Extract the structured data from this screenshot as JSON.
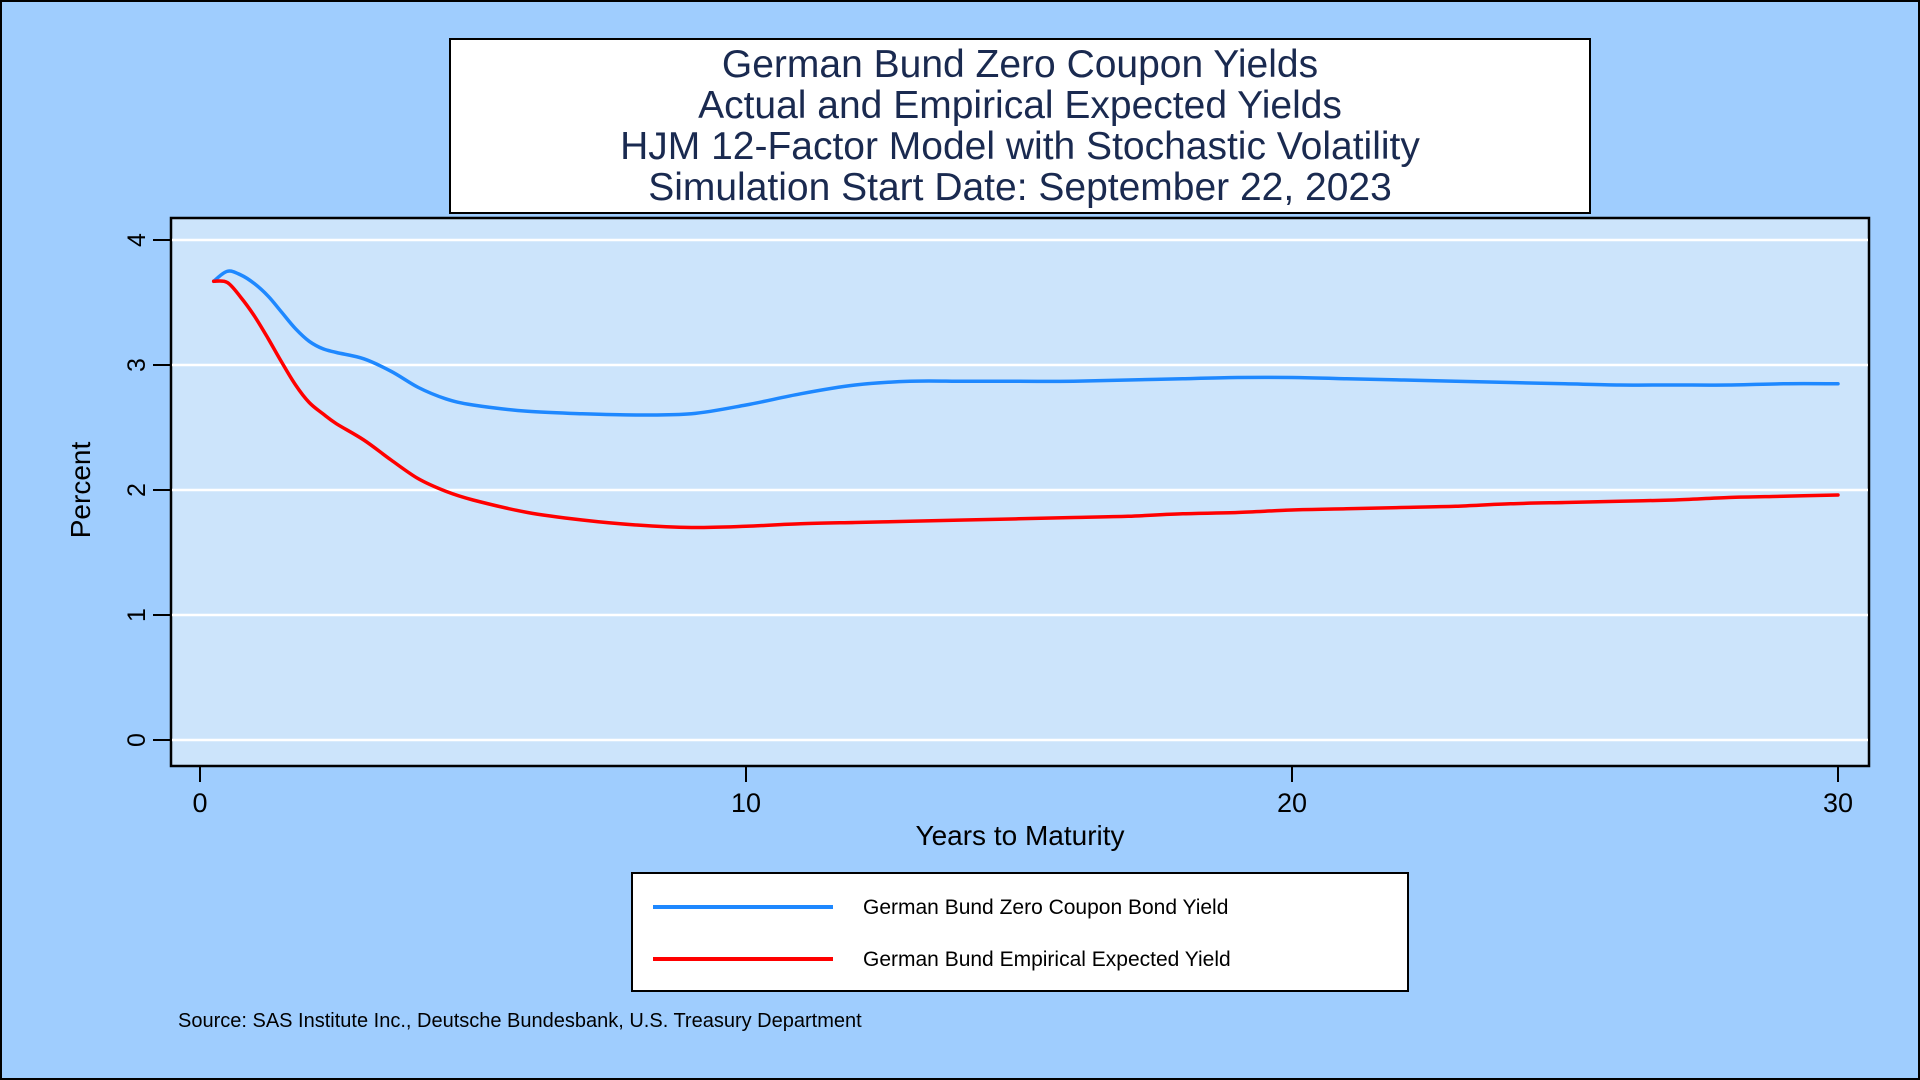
{
  "title_lines": [
    "German Bund Zero Coupon Yields",
    "Actual and Empirical Expected Yields",
    "HJM 12-Factor Model with Stochastic Volatility",
    "Simulation Start Date: September 22, 2023"
  ],
  "source": "Source: SAS Institute Inc., Deutsche Bundesbank, U.S. Treasury Department",
  "colors": {
    "page_background": "#9fcdfe",
    "plot_background": "#cce4fb",
    "gridline": "#ffffff",
    "zero_coupon_series": "#1e88ff",
    "expected_series": "#ff0000"
  },
  "chart_data": {
    "type": "line",
    "xlabel": "Years to Maturity",
    "ylabel": "Percent",
    "xlim": [
      0,
      30
    ],
    "ylim": [
      0,
      4
    ],
    "x_ticks": [
      "0",
      "10",
      "20",
      "30"
    ],
    "y_ticks": [
      "0",
      "1",
      "2",
      "3",
      "4"
    ],
    "grid": "horizontal",
    "legend_position": "bottom",
    "series": [
      {
        "name": "German Bund Zero Coupon Bond Yield",
        "color": "#1e88ff",
        "x": [
          0.25,
          0.5,
          0.75,
          1.0,
          1.25,
          1.5,
          1.75,
          2.0,
          2.25,
          2.5,
          3.0,
          3.5,
          4.0,
          4.5,
          5,
          6,
          7,
          8,
          9,
          10,
          11,
          12,
          13,
          14,
          15,
          16,
          17,
          18,
          19,
          20,
          21,
          22,
          23,
          24,
          25,
          26,
          27,
          28,
          29,
          30
        ],
        "y": [
          3.67,
          3.75,
          3.72,
          3.65,
          3.55,
          3.42,
          3.29,
          3.19,
          3.13,
          3.1,
          3.05,
          2.95,
          2.82,
          2.73,
          2.68,
          2.63,
          2.61,
          2.6,
          2.61,
          2.68,
          2.77,
          2.84,
          2.87,
          2.87,
          2.87,
          2.87,
          2.88,
          2.89,
          2.9,
          2.9,
          2.89,
          2.88,
          2.87,
          2.86,
          2.85,
          2.84,
          2.84,
          2.84,
          2.85,
          2.85
        ]
      },
      {
        "name": "German Bund Empirical Expected Yield",
        "color": "#ff0000",
        "x": [
          0.25,
          0.5,
          0.75,
          1.0,
          1.25,
          1.5,
          1.75,
          2.0,
          2.25,
          2.5,
          3.0,
          3.5,
          4.0,
          4.5,
          5,
          6,
          7,
          8,
          9,
          10,
          11,
          12,
          13,
          14,
          15,
          16,
          17,
          18,
          19,
          20,
          21,
          22,
          23,
          24,
          25,
          26,
          27,
          28,
          29,
          30
        ],
        "y": [
          3.67,
          3.66,
          3.54,
          3.39,
          3.21,
          3.02,
          2.84,
          2.7,
          2.61,
          2.53,
          2.4,
          2.24,
          2.09,
          1.99,
          1.92,
          1.82,
          1.76,
          1.72,
          1.7,
          1.71,
          1.73,
          1.74,
          1.75,
          1.76,
          1.77,
          1.78,
          1.79,
          1.81,
          1.82,
          1.84,
          1.85,
          1.86,
          1.87,
          1.89,
          1.9,
          1.91,
          1.92,
          1.94,
          1.95,
          1.96
        ]
      }
    ]
  }
}
